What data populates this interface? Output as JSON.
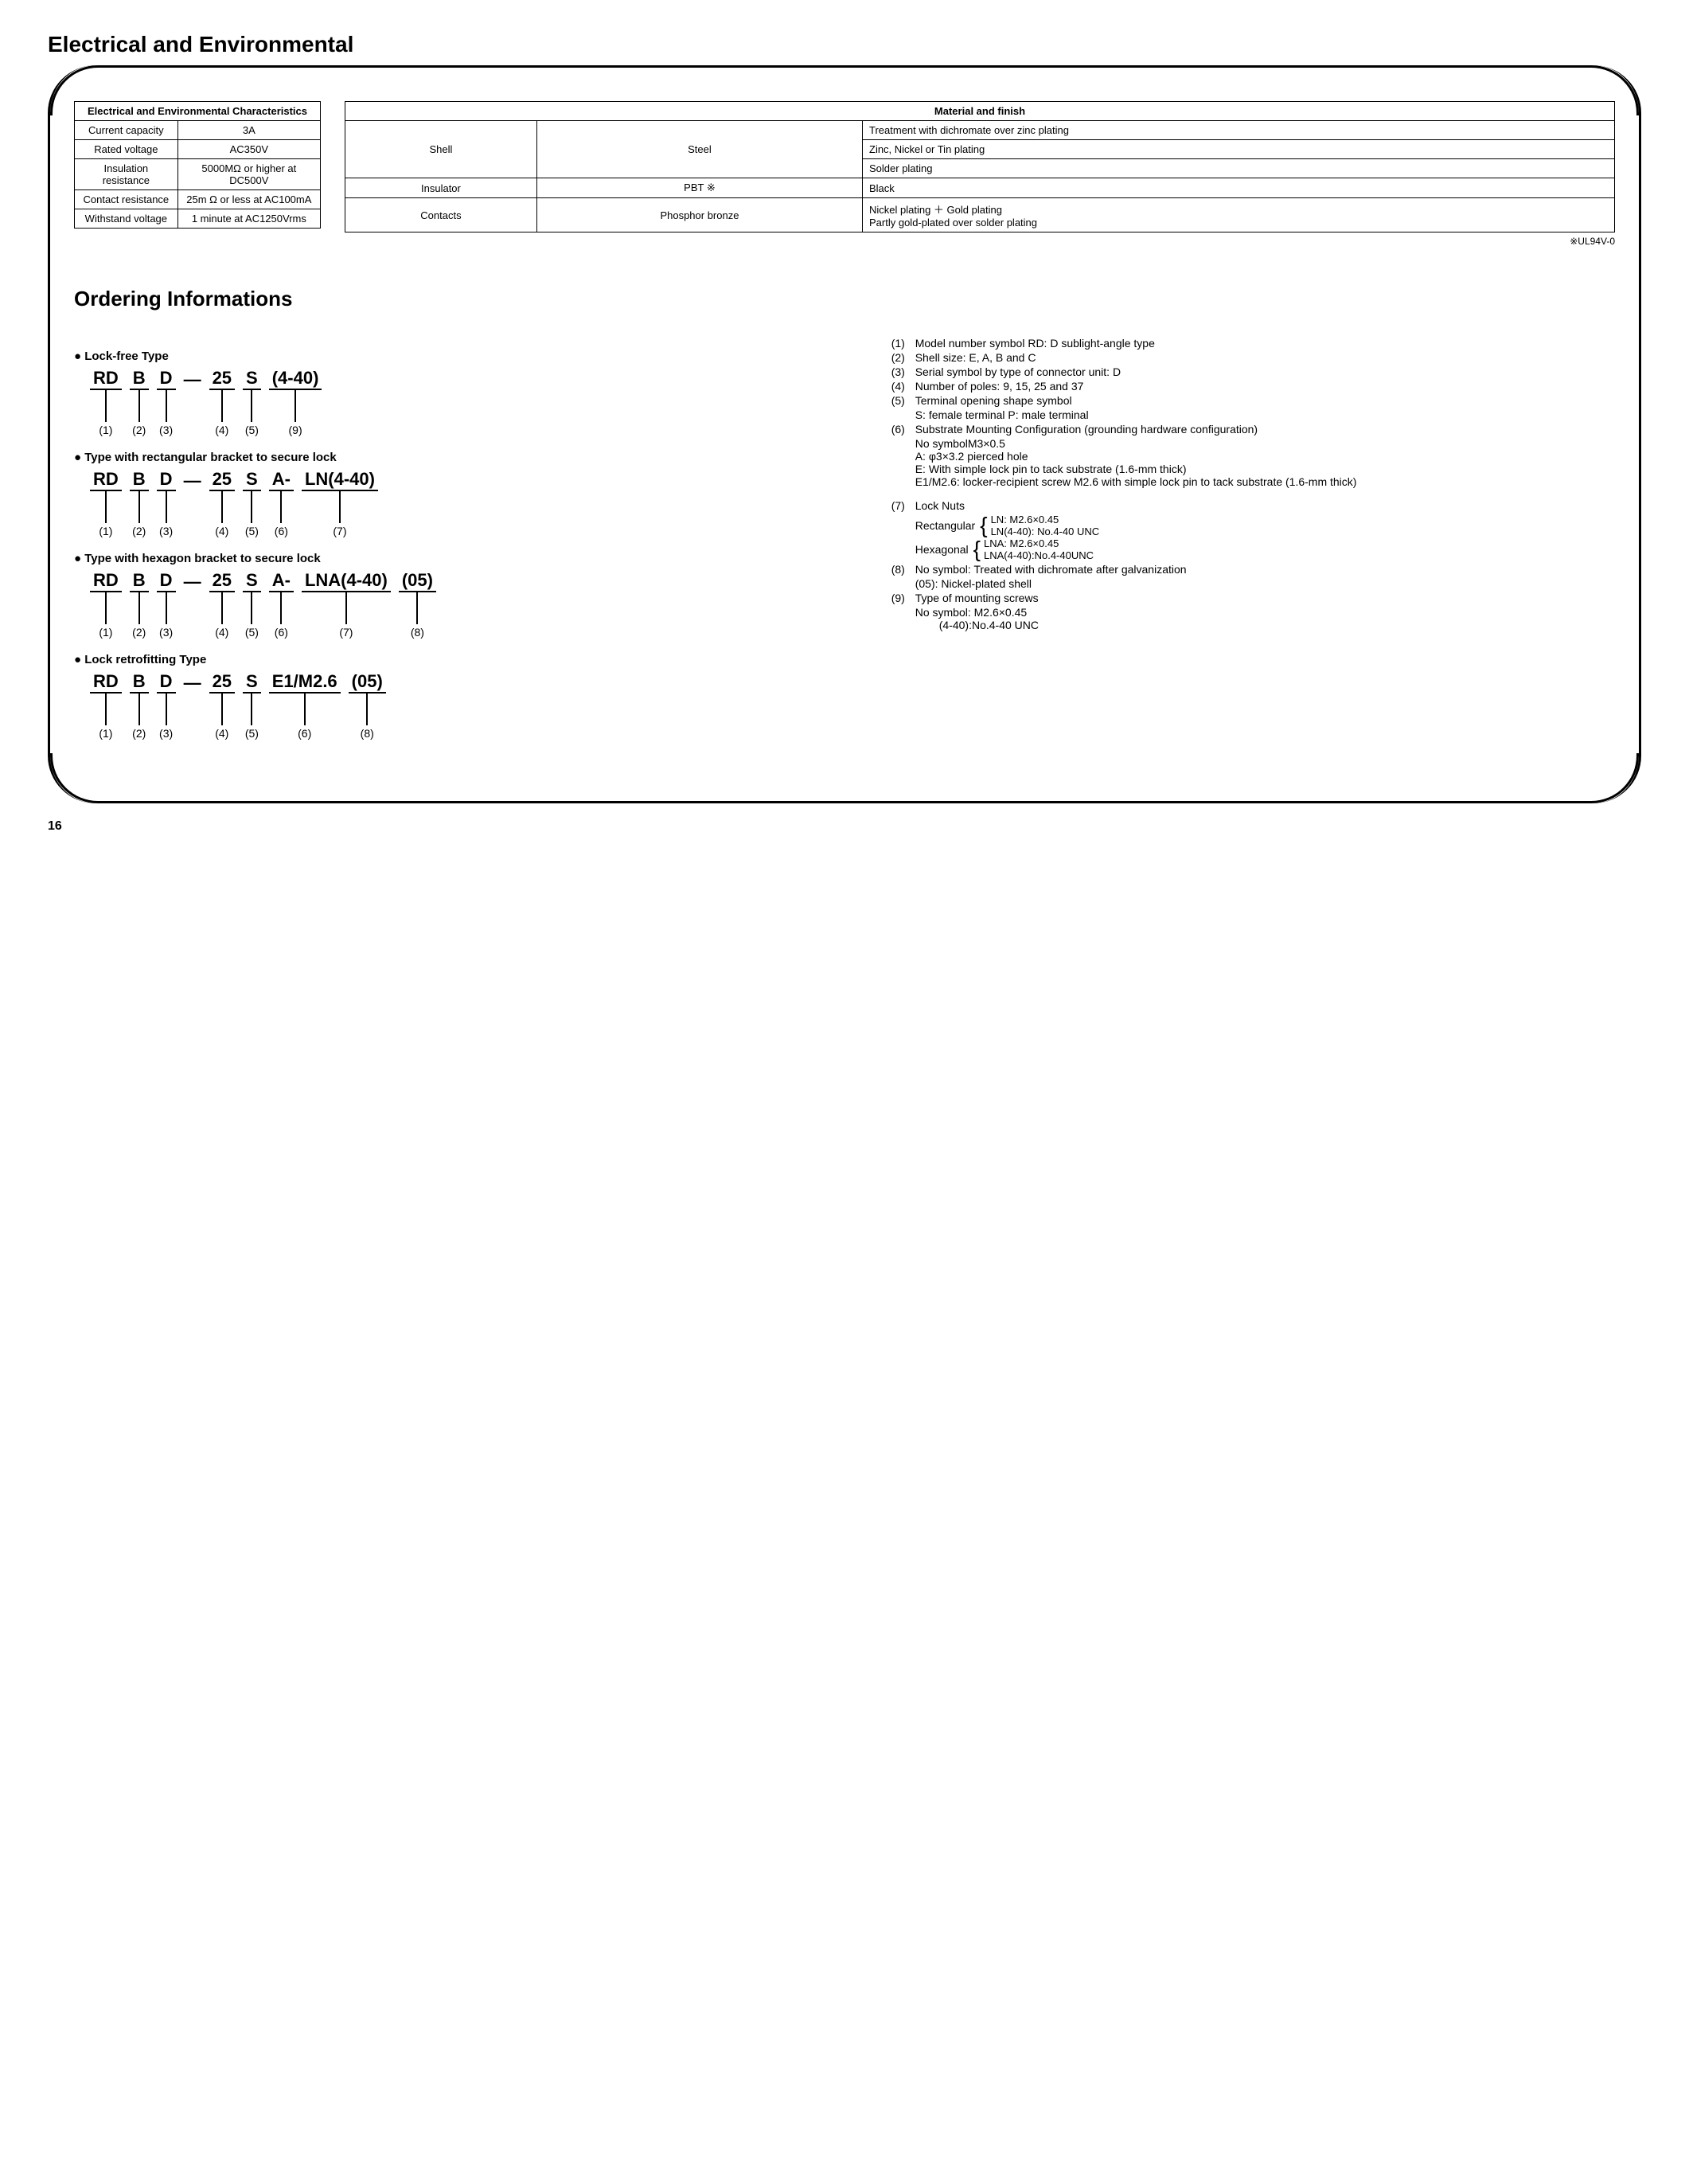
{
  "title": "Electrical and Environmental",
  "ec_table": {
    "caption": "Electrical and Environmental Characteristics",
    "rows": [
      [
        "Current capacity",
        "3A"
      ],
      [
        "Rated voltage",
        "AC350V"
      ],
      [
        "Insulation resistance",
        "5000MΩ or higher at DC500V"
      ],
      [
        "Contact resistance",
        "25m Ω or less at AC100mA"
      ],
      [
        "Withstand voltage",
        "1 minute at AC1250Vrms"
      ]
    ]
  },
  "mat_table": {
    "caption": "Material and finish",
    "shell_label": "Shell",
    "shell_material": "Steel",
    "shell_treatments": [
      "Treatment with dichromate over zinc plating",
      "Zinc, Nickel or Tin plating",
      "Solder plating"
    ],
    "insulator_row": [
      "Insulator",
      "PBT ※",
      "Black"
    ],
    "contacts_row": [
      "Contacts",
      "Phosphor bronze",
      "Nickel plating ＋ Gold plating\nPartly gold-plated over solder plating"
    ]
  },
  "footnote": "※UL94V-0",
  "ordering_title": "Ordering Informations",
  "type_heads": {
    "lockfree": "● Lock-free Type",
    "rect": "● Type with rectangular bracket to secure lock",
    "hex": "● Type with hexagon bracket to secure lock",
    "retro": "● Lock retrofitting Type"
  },
  "pn": {
    "lockfree": [
      {
        "t": "RD",
        "n": "(1)"
      },
      {
        "t": "B",
        "n": "(2)"
      },
      {
        "t": "D",
        "n": "(3)"
      },
      {
        "dash": "—"
      },
      {
        "t": "25",
        "n": "(4)"
      },
      {
        "t": "S",
        "n": "(5)"
      },
      {
        "t": "(4-40)",
        "n": "(9)"
      }
    ],
    "rect": [
      {
        "t": "RD",
        "n": "(1)"
      },
      {
        "t": "B",
        "n": "(2)"
      },
      {
        "t": "D",
        "n": "(3)"
      },
      {
        "dash": "—"
      },
      {
        "t": "25",
        "n": "(4)"
      },
      {
        "t": "S",
        "n": "(5)"
      },
      {
        "t": "A-",
        "n": "(6)"
      },
      {
        "t": "LN(4-40)",
        "n": "(7)"
      }
    ],
    "hex": [
      {
        "t": "RD",
        "n": "(1)"
      },
      {
        "t": "B",
        "n": "(2)"
      },
      {
        "t": "D",
        "n": "(3)"
      },
      {
        "dash": "—"
      },
      {
        "t": "25",
        "n": "(4)"
      },
      {
        "t": "S",
        "n": "(5)"
      },
      {
        "t": "A-",
        "n": "(6)"
      },
      {
        "t": "LNA(4-40)",
        "n": "(7)"
      },
      {
        "t": "(05)",
        "n": "(8)"
      }
    ],
    "retro": [
      {
        "t": "RD",
        "n": "(1)"
      },
      {
        "t": "B",
        "n": "(2)"
      },
      {
        "t": "D",
        "n": "(3)"
      },
      {
        "dash": "—"
      },
      {
        "t": "25",
        "n": "(4)"
      },
      {
        "t": "S",
        "n": "(5)"
      },
      {
        "t": "E1/M2.6",
        "n": "(6)"
      },
      {
        "t": "(05)",
        "n": "(8)"
      }
    ]
  },
  "legend": [
    {
      "n": "(1)",
      "t": "Model number symbol   RD: D sublight-angle type"
    },
    {
      "n": "(2)",
      "t": "Shell size: E, A, B and C"
    },
    {
      "n": "(3)",
      "t": "Serial symbol by type of connector unit: D"
    },
    {
      "n": "(4)",
      "t": "Number of poles: 9, 15, 25 and 37"
    },
    {
      "n": "(5)",
      "t": "Terminal opening shape symbol"
    },
    {
      "sub": "S: female terminal   P: male terminal"
    },
    {
      "n": "(6)",
      "t": "Substrate Mounting Configuration (grounding hardware configuration)"
    },
    {
      "sub": "No symbolM3×0.5"
    },
    {
      "sub": "A:          φ3×3.2 pierced hole"
    },
    {
      "sub": "E:          With simple lock pin to tack substrate (1.6-mm thick)"
    },
    {
      "sub": "E1/M2.6: locker-recipient screw M2.6 with simple lock pin to tack substrate (1.6-mm thick)"
    }
  ],
  "legend7": {
    "n": "(7)",
    "title": "Lock Nuts",
    "rect_label": "Rectangular",
    "rect_lines": [
      "LN: M2.6×0.45",
      "LN(4-40): No.4-40 UNC"
    ],
    "hex_label": "Hexagonal",
    "hex_lines": [
      "LNA: M2.6×0.45",
      "LNA(4-40):No.4-40UNC"
    ]
  },
  "legend8": {
    "n": "(8)",
    "t": "No symbol: Treated with dichromate after galvanization",
    "sub": "(05): Nickel-plated shell"
  },
  "legend9": {
    "n": "(9)",
    "t": "Type of mounting screws",
    "subs": [
      "No symbol: M2.6×0.45",
      "(4-40):No.4-40 UNC"
    ]
  },
  "page_number": "16"
}
